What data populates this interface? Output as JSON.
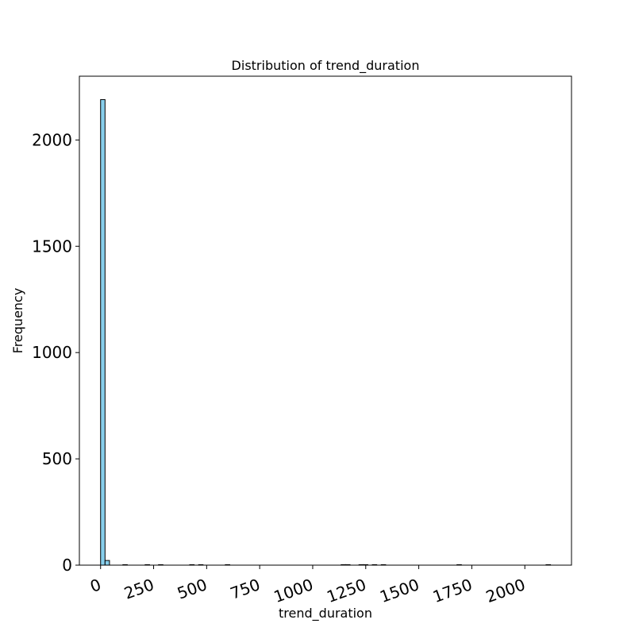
{
  "chart_data": {
    "type": "bar",
    "title": "Distribution of trend_duration",
    "xlabel": "trend_duration",
    "ylabel": "Frequency",
    "xlim": [
      -100,
      2220
    ],
    "ylim": [
      0,
      2300
    ],
    "x_ticks": [
      0,
      250,
      500,
      750,
      1000,
      1250,
      1500,
      1750,
      2000
    ],
    "y_ticks": [
      0,
      500,
      1000,
      1500,
      2000
    ],
    "x_tick_rotation_deg": -20,
    "grid": false,
    "bin_width": 21,
    "bar_color": "#87ceeb",
    "edge_color": "#000000",
    "bins": [
      {
        "x0": 0,
        "count": 2190
      },
      {
        "x0": 21,
        "count": 22
      },
      {
        "x0": 105,
        "count": 2
      },
      {
        "x0": 210,
        "count": 1
      },
      {
        "x0": 273,
        "count": 1
      },
      {
        "x0": 420,
        "count": 1
      },
      {
        "x0": 462,
        "count": 1
      },
      {
        "x0": 588,
        "count": 1
      },
      {
        "x0": 1134,
        "count": 2
      },
      {
        "x0": 1155,
        "count": 2
      },
      {
        "x0": 1218,
        "count": 2
      },
      {
        "x0": 1239,
        "count": 2
      },
      {
        "x0": 1281,
        "count": 1
      },
      {
        "x0": 1323,
        "count": 1
      },
      {
        "x0": 1680,
        "count": 1
      },
      {
        "x0": 2100,
        "count": 1
      }
    ]
  }
}
